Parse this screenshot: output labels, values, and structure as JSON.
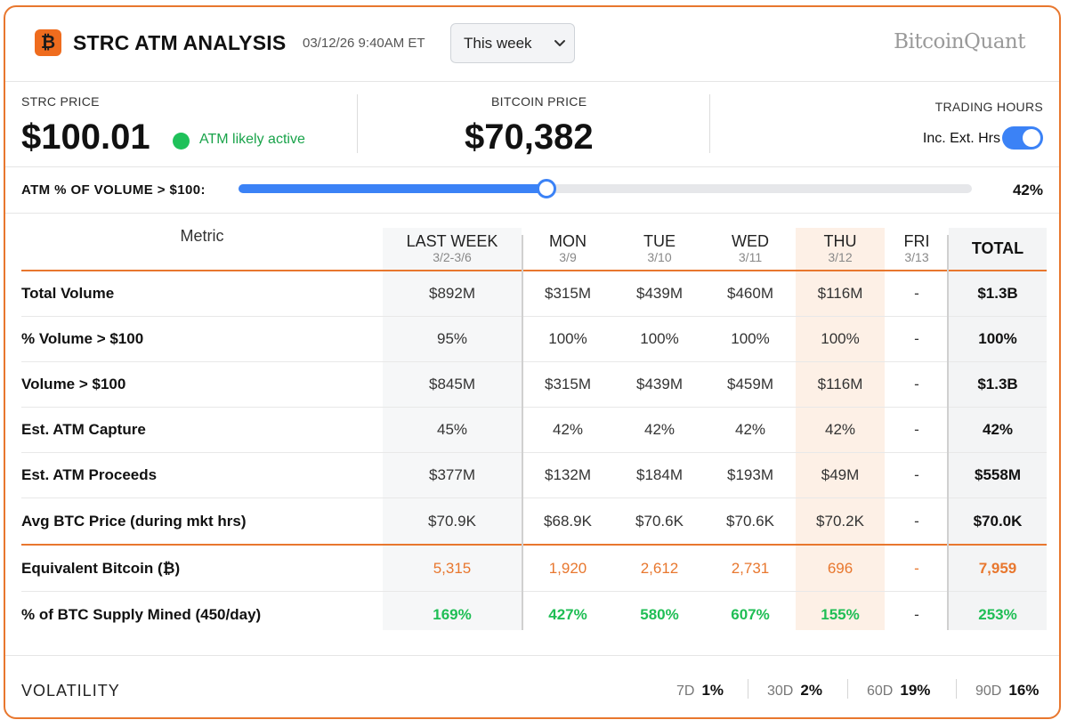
{
  "header": {
    "logo_glyph": "₿",
    "title": "STRC ATM ANALYSIS",
    "timestamp": "03/12/26 9:40AM ET",
    "range_select": "This week",
    "brand": "BitcoinQuant"
  },
  "prices": {
    "strc_label": "STRC PRICE",
    "strc_value": "$100.01",
    "status": "ATM likely active",
    "btc_label": "BITCOIN PRICE",
    "btc_value": "$70,382",
    "trading_hours_label": "TRADING HOURS",
    "toggle_label": "Inc. Ext. Hrs",
    "toggle_on": true
  },
  "slider": {
    "label": "ATM % OF VOLUME > $100:",
    "value_text": "42%",
    "fraction": 0.42
  },
  "table": {
    "metric_header": "Metric",
    "columns": [
      {
        "day": "LAST WEEK",
        "date": "3/2-3/6"
      },
      {
        "day": "MON",
        "date": "3/9"
      },
      {
        "day": "TUE",
        "date": "3/10"
      },
      {
        "day": "WED",
        "date": "3/11"
      },
      {
        "day": "THU",
        "date": "3/12"
      },
      {
        "day": "FRI",
        "date": "3/13"
      }
    ],
    "total_header": "TOTAL",
    "rows": [
      {
        "metric": "Total Volume",
        "values": [
          "$892M",
          "$315M",
          "$439M",
          "$460M",
          "$116M",
          "-"
        ],
        "total": "$1.3B"
      },
      {
        "metric": "% Volume > $100",
        "values": [
          "95%",
          "100%",
          "100%",
          "100%",
          "100%",
          "-"
        ],
        "total": "100%"
      },
      {
        "metric": "Volume > $100",
        "values": [
          "$845M",
          "$315M",
          "$439M",
          "$459M",
          "$116M",
          "-"
        ],
        "total": "$1.3B"
      },
      {
        "metric": "Est. ATM Capture",
        "values": [
          "45%",
          "42%",
          "42%",
          "42%",
          "42%",
          "-"
        ],
        "total": "42%"
      },
      {
        "metric": "Est. ATM Proceeds",
        "values": [
          "$377M",
          "$132M",
          "$184M",
          "$193M",
          "$49M",
          "-"
        ],
        "total": "$558M"
      },
      {
        "metric": "Avg BTC Price (during mkt hrs)",
        "values": [
          "$70.9K",
          "$68.9K",
          "$70.6K",
          "$70.6K",
          "$70.2K",
          "-"
        ],
        "total": "$70.0K"
      },
      {
        "metric": "Equivalent Bitcoin (₿)",
        "values": [
          "5,315",
          "1,920",
          "2,612",
          "2,731",
          "696",
          "-"
        ],
        "total": "7,959"
      },
      {
        "metric": "% of BTC Supply Mined (450/day)",
        "values": [
          "169%",
          "427%",
          "580%",
          "607%",
          "155%",
          "-"
        ],
        "total": "253%"
      }
    ]
  },
  "volatility": {
    "title": "VOLATILITY",
    "items": [
      {
        "period": "7D",
        "value": "1%"
      },
      {
        "period": "30D",
        "value": "2%"
      },
      {
        "period": "60D",
        "value": "19%"
      },
      {
        "period": "90D",
        "value": "16%"
      }
    ]
  },
  "colors": {
    "accent": "#e8772e",
    "blue": "#3b82f6",
    "green": "#1fbe55"
  }
}
